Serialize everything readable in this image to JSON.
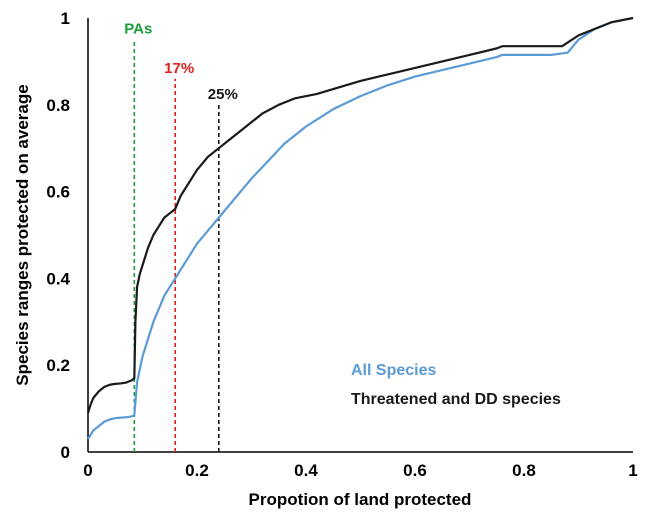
{
  "chart_data": {
    "type": "line",
    "xlabel": "Propotion of land protected",
    "ylabel": "Species ranges protected on average",
    "xlim": [
      0,
      1
    ],
    "ylim": [
      0,
      1
    ],
    "x_ticks": [
      "0",
      "0.2",
      "0.4",
      "0.6",
      "0.8",
      "1"
    ],
    "y_ticks": [
      "0",
      "0.2",
      "0.4",
      "0.6",
      "0.8",
      "1"
    ],
    "grid": false,
    "legend_position": "bottom-right",
    "series": [
      {
        "name": "All Species",
        "color": "#5b9bd5",
        "x": [
          0,
          0.005,
          0.01,
          0.02,
          0.03,
          0.04,
          0.05,
          0.06,
          0.07,
          0.08,
          0.085,
          0.09,
          0.1,
          0.11,
          0.12,
          0.13,
          0.14,
          0.15,
          0.16,
          0.17,
          0.18,
          0.2,
          0.22,
          0.24,
          0.26,
          0.28,
          0.3,
          0.33,
          0.36,
          0.4,
          0.45,
          0.5,
          0.55,
          0.6,
          0.65,
          0.7,
          0.75,
          0.76,
          0.8,
          0.85,
          0.88,
          0.9,
          0.93,
          0.96,
          1.0
        ],
        "y": [
          0.03,
          0.04,
          0.05,
          0.06,
          0.07,
          0.075,
          0.078,
          0.079,
          0.08,
          0.082,
          0.085,
          0.16,
          0.22,
          0.26,
          0.3,
          0.33,
          0.36,
          0.38,
          0.4,
          0.42,
          0.44,
          0.48,
          0.51,
          0.54,
          0.57,
          0.6,
          0.63,
          0.67,
          0.71,
          0.75,
          0.79,
          0.82,
          0.845,
          0.865,
          0.88,
          0.895,
          0.91,
          0.915,
          0.915,
          0.915,
          0.92,
          0.95,
          0.975,
          0.99,
          1.0
        ]
      },
      {
        "name": "Threatened and DD species",
        "color": "#1a1a1a",
        "x": [
          0,
          0.005,
          0.01,
          0.02,
          0.03,
          0.04,
          0.05,
          0.06,
          0.07,
          0.08,
          0.085,
          0.087,
          0.09,
          0.095,
          0.1,
          0.11,
          0.12,
          0.13,
          0.14,
          0.15,
          0.16,
          0.17,
          0.18,
          0.2,
          0.22,
          0.24,
          0.26,
          0.28,
          0.3,
          0.32,
          0.35,
          0.38,
          0.42,
          0.46,
          0.5,
          0.55,
          0.6,
          0.65,
          0.7,
          0.75,
          0.76,
          0.8,
          0.85,
          0.87,
          0.9,
          0.93,
          0.96,
          1.0
        ],
        "y": [
          0.09,
          0.11,
          0.125,
          0.14,
          0.15,
          0.155,
          0.157,
          0.158,
          0.16,
          0.165,
          0.17,
          0.3,
          0.38,
          0.41,
          0.43,
          0.47,
          0.5,
          0.52,
          0.54,
          0.55,
          0.56,
          0.59,
          0.61,
          0.65,
          0.68,
          0.7,
          0.72,
          0.74,
          0.76,
          0.78,
          0.8,
          0.815,
          0.825,
          0.84,
          0.855,
          0.87,
          0.885,
          0.9,
          0.915,
          0.93,
          0.935,
          0.935,
          0.935,
          0.935,
          0.96,
          0.975,
          0.99,
          1.0
        ]
      }
    ],
    "annotations": [
      {
        "label": "PAs",
        "x": 0.085,
        "color": "#1a9e3a"
      },
      {
        "label": "17%",
        "x": 0.16,
        "color": "#e02020"
      },
      {
        "label": "25%",
        "x": 0.24,
        "color": "#1a1a1a"
      }
    ]
  }
}
